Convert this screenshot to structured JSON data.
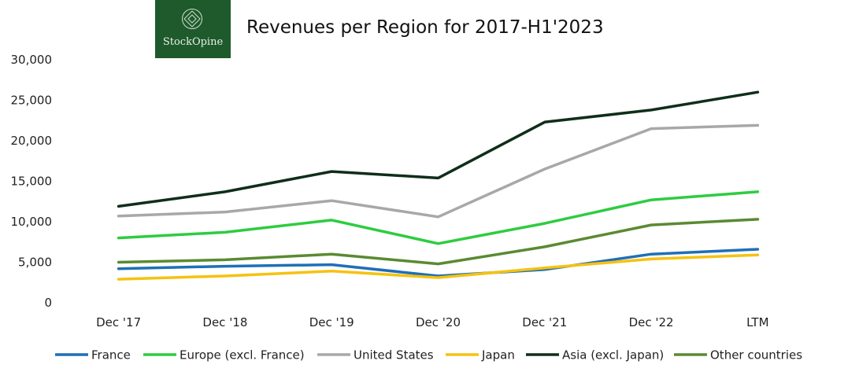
{
  "logo": {
    "brand": "StockOpine"
  },
  "chart_data": {
    "type": "line",
    "title": "Revenues per Region for 2017-H1'2023",
    "xlabel": "",
    "ylabel": "",
    "ylim": [
      0,
      30000
    ],
    "yticks": [
      0,
      5000,
      10000,
      15000,
      20000,
      25000,
      30000
    ],
    "ytick_labels": [
      "0",
      "5,000",
      "10,000",
      "15,000",
      "20,000",
      "25,000",
      "30,000"
    ],
    "grid": false,
    "legend": "bottom",
    "categories": [
      "Dec '17",
      "Dec '18",
      "Dec '19",
      "Dec '20",
      "Dec '21",
      "Dec '22",
      "LTM"
    ],
    "series": [
      {
        "name": "France",
        "color": "#1f6fb7",
        "values": [
          4200,
          4500,
          4700,
          3300,
          4100,
          6000,
          6600
        ]
      },
      {
        "name": "Europe (excl. France)",
        "color": "#2ecc40",
        "values": [
          8000,
          8700,
          10200,
          7300,
          9800,
          12700,
          13700
        ]
      },
      {
        "name": "United States",
        "color": "#a8a8a8",
        "values": [
          10700,
          11200,
          12600,
          10600,
          16500,
          21500,
          21900
        ]
      },
      {
        "name": "Japan",
        "color": "#f5c211",
        "values": [
          2900,
          3300,
          3900,
          3100,
          4300,
          5400,
          5900
        ]
      },
      {
        "name": "Asia (excl. Japan)",
        "color": "#0f2e1a",
        "values": [
          11900,
          13700,
          16200,
          15400,
          22300,
          23800,
          26000
        ]
      },
      {
        "name": "Other countries",
        "color": "#5a8a32",
        "values": [
          5000,
          5300,
          6000,
          4800,
          6900,
          9600,
          10300
        ]
      }
    ]
  }
}
